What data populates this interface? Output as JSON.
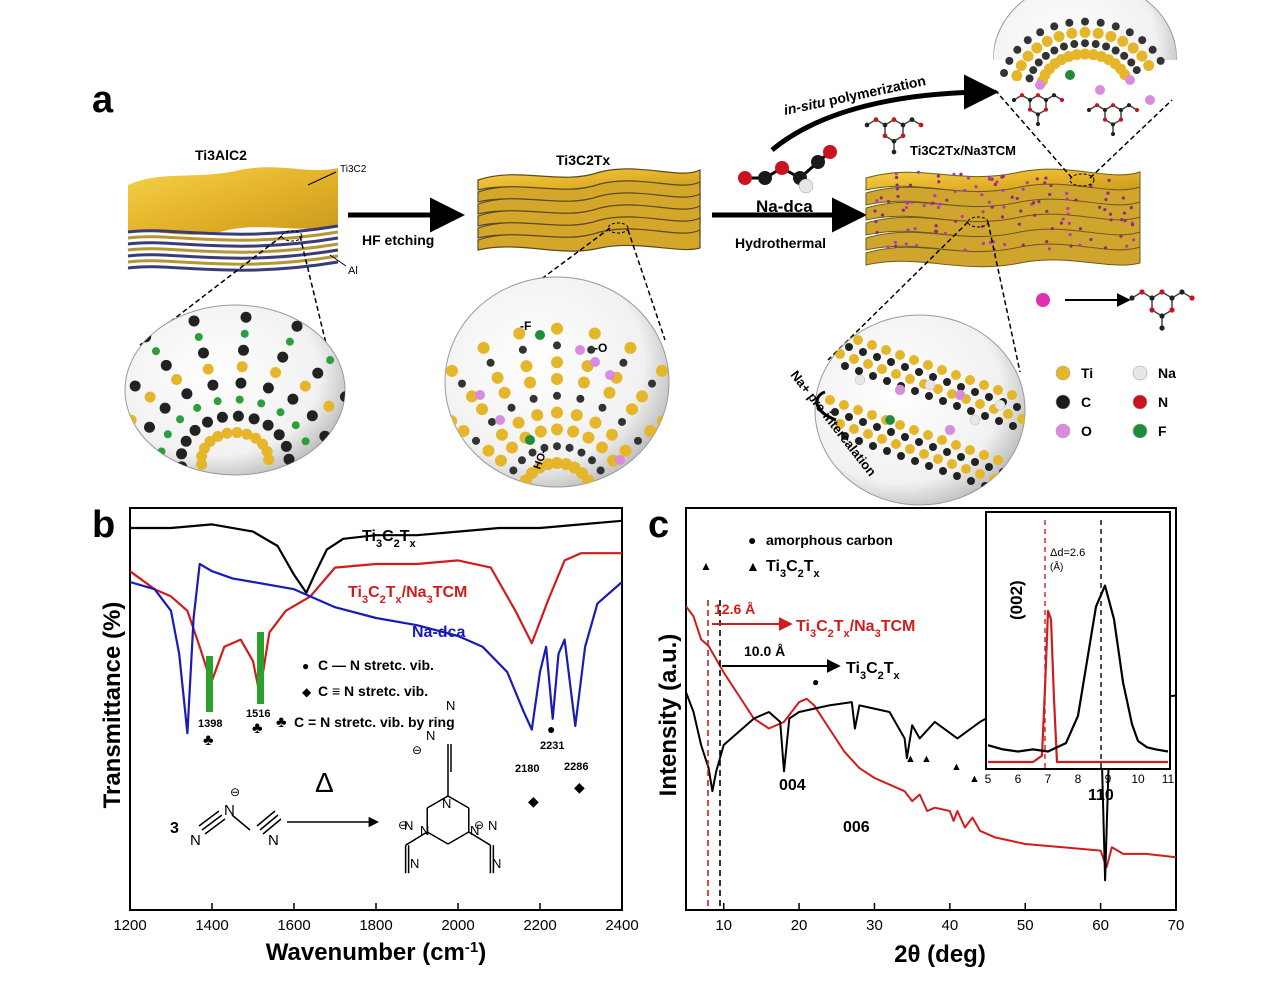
{
  "panels": {
    "a": {
      "label": "a",
      "labels": {
        "ti3alc2": "Ti3AlC2",
        "ti3c2_arrow": "Ti3C2",
        "al_arrow": "Al",
        "hf_etching": "HF etching",
        "ti3c2tx": "Ti3C2Tx",
        "na_dca": "Na-dca",
        "hydrothermal": "Hydrothermal",
        "in_situ": "in-situ",
        "polymerization": " polymerization",
        "product": "Ti3C2Tx/Na3TCM",
        "f_group": "-F",
        "o_group": "-O",
        "ho_group": "HO-",
        "pre_intercalation": "Na+ pre-intercalation"
      },
      "legend": [
        {
          "label": "Ti",
          "color": "#E5B62A"
        },
        {
          "label": "Na",
          "color": "#E8E6E6"
        },
        {
          "label": "C",
          "color": "#1A1A1A"
        },
        {
          "label": "N",
          "color": "#C8141E"
        },
        {
          "label": "O",
          "color": "#D98BE0"
        },
        {
          "label": "F",
          "color": "#1E8C3A"
        }
      ]
    },
    "b": {
      "label": "b",
      "peak_labels": [
        "1398",
        "1516",
        "2180",
        "2231",
        "2286"
      ],
      "annotations": {
        "cn_single": "C — N stretc. vib.",
        "cn_triple": "C ≡ N stretc. vib.",
        "cn_ring": "C = N stretc. vib. by ring",
        "reaction_coef": "3",
        "heat": "Δ"
      }
    },
    "c": {
      "label": "c",
      "legend": {
        "carbon": "amorphous carbon",
        "mxene": "Ti3C2Tx"
      },
      "spacing_big": "12.6 Å",
      "spacing_small": "10.0 Å",
      "arrow_product": "Ti3C2Tx/Na3TCM",
      "arrow_mxene": "Ti3C2Tx",
      "peaks": {
        "p004": "004",
        "p006": "006",
        "p110": "110"
      },
      "inset": {
        "plane": "(002)",
        "delta": "Δd=2.6",
        "delta_unit": "(Å)"
      }
    }
  },
  "chart_data": [
    {
      "type": "line",
      "panel": "b",
      "xlabel": "Wavenumber (cm-1)",
      "ylabel": "Transmittance (%)",
      "xlim": [
        1200,
        2400
      ],
      "xticks": [
        1200,
        1400,
        1600,
        1800,
        2000,
        2200,
        2400
      ],
      "series": [
        {
          "name": "Ti3C2Tx",
          "color": "#000000",
          "x": [
            1200,
            1300,
            1400,
            1500,
            1560,
            1600,
            1630,
            1650,
            1680,
            1720,
            1800,
            1900,
            2000,
            2100,
            2200,
            2300,
            2400
          ],
          "y": [
            0.95,
            0.95,
            0.96,
            0.94,
            0.9,
            0.82,
            0.77,
            0.82,
            0.89,
            0.92,
            0.93,
            0.93,
            0.94,
            0.95,
            0.95,
            0.96,
            0.97
          ]
        },
        {
          "name": "Ti3C2Tx/Na3TCM",
          "color": "#D01C1C",
          "x": [
            1200,
            1260,
            1300,
            1340,
            1370,
            1398,
            1430,
            1470,
            1500,
            1516,
            1540,
            1580,
            1640,
            1700,
            1800,
            1900,
            2000,
            2080,
            2140,
            2180,
            2220,
            2260,
            2300,
            2340,
            2400
          ],
          "y": [
            0.83,
            0.78,
            0.76,
            0.72,
            0.62,
            0.52,
            0.62,
            0.64,
            0.58,
            0.49,
            0.66,
            0.72,
            0.76,
            0.84,
            0.85,
            0.85,
            0.86,
            0.84,
            0.72,
            0.63,
            0.75,
            0.86,
            0.88,
            0.88,
            0.88
          ]
        },
        {
          "name": "Na-dca",
          "color": "#1A1AB5",
          "x": [
            1200,
            1260,
            1300,
            1320,
            1340,
            1355,
            1370,
            1400,
            1450,
            1500,
            1600,
            1700,
            1800,
            1900,
            2000,
            2060,
            2120,
            2160,
            2180,
            2200,
            2215,
            2231,
            2245,
            2260,
            2286,
            2310,
            2340,
            2400
          ],
          "y": [
            0.8,
            0.78,
            0.72,
            0.6,
            0.38,
            0.7,
            0.85,
            0.83,
            0.81,
            0.8,
            0.78,
            0.73,
            0.7,
            0.68,
            0.65,
            0.62,
            0.55,
            0.44,
            0.39,
            0.55,
            0.62,
            0.42,
            0.6,
            0.64,
            0.4,
            0.62,
            0.74,
            0.8
          ]
        }
      ]
    },
    {
      "type": "line",
      "panel": "c",
      "xlabel": "2θ (deg)",
      "ylabel": "Intensity (a.u.)",
      "xlim": [
        5,
        70
      ],
      "xticks": [
        10,
        20,
        30,
        40,
        50,
        60,
        70
      ],
      "series": [
        {
          "name": "Ti3C2Tx/Na3TCM",
          "color": "#D01C1C",
          "x": [
            5,
            6,
            7,
            8,
            9,
            10,
            12,
            14,
            16,
            18,
            20,
            21,
            22,
            24,
            26,
            28,
            30,
            32,
            34,
            35,
            36,
            37,
            38,
            40,
            40.5,
            41,
            42,
            43,
            44,
            46,
            50,
            55,
            60,
            60.8,
            61.5,
            63,
            66,
            70
          ],
          "y": [
            0.92,
            0.89,
            0.82,
            0.8,
            0.76,
            0.72,
            0.65,
            0.58,
            0.55,
            0.57,
            0.63,
            0.64,
            0.62,
            0.55,
            0.48,
            0.43,
            0.4,
            0.38,
            0.36,
            0.33,
            0.35,
            0.3,
            0.31,
            0.3,
            0.27,
            0.3,
            0.25,
            0.28,
            0.24,
            0.22,
            0.2,
            0.19,
            0.18,
            0.13,
            0.19,
            0.17,
            0.17,
            0.16
          ]
        },
        {
          "name": "Ti3C2Tx",
          "color": "#000000",
          "x": [
            5,
            6,
            7,
            8,
            8.5,
            9,
            10,
            12,
            14,
            16,
            17.5,
            18,
            18.7,
            20,
            24,
            27,
            27.4,
            28,
            32,
            34,
            34.3,
            35,
            36,
            38,
            41,
            44,
            48,
            52,
            56,
            59,
            60,
            60.6,
            61.3,
            63,
            66,
            70
          ],
          "y": [
            0.66,
            0.6,
            0.5,
            0.43,
            0.36,
            0.42,
            0.5,
            0.54,
            0.58,
            0.6,
            0.57,
            0.42,
            0.58,
            0.6,
            0.62,
            0.63,
            0.55,
            0.62,
            0.6,
            0.52,
            0.46,
            0.56,
            0.52,
            0.57,
            0.52,
            0.57,
            0.62,
            0.63,
            0.64,
            0.63,
            0.6,
            0.09,
            0.62,
            0.63,
            0.64,
            0.65
          ]
        }
      ]
    },
    {
      "type": "line",
      "panel": "c-inset",
      "xlim": [
        5,
        11
      ],
      "xticks": [
        5,
        6,
        7,
        8,
        9,
        10,
        11
      ],
      "series": [
        {
          "name": "Ti3C2Tx/Na3TCM",
          "color": "#D01C1C",
          "x": [
            5,
            6.5,
            6.8,
            6.9,
            7.0,
            7.1,
            7.2,
            7.3,
            7.6,
            11
          ],
          "y": [
            0.0,
            0.0,
            0.03,
            0.35,
            0.72,
            0.68,
            0.3,
            0.0,
            0.0,
            0.0
          ]
        },
        {
          "name": "Ti3C2Tx",
          "color": "#000000",
          "x": [
            5,
            5.5,
            6,
            6.5,
            7,
            7.3,
            7.6,
            8,
            8.3,
            8.6,
            8.9,
            9.2,
            9.5,
            9.8,
            10,
            10.3,
            10.6,
            11
          ],
          "y": [
            0.08,
            0.06,
            0.05,
            0.06,
            0.05,
            0.07,
            0.09,
            0.22,
            0.48,
            0.74,
            0.84,
            0.68,
            0.38,
            0.18,
            0.1,
            0.07,
            0.06,
            0.05
          ]
        }
      ]
    }
  ]
}
